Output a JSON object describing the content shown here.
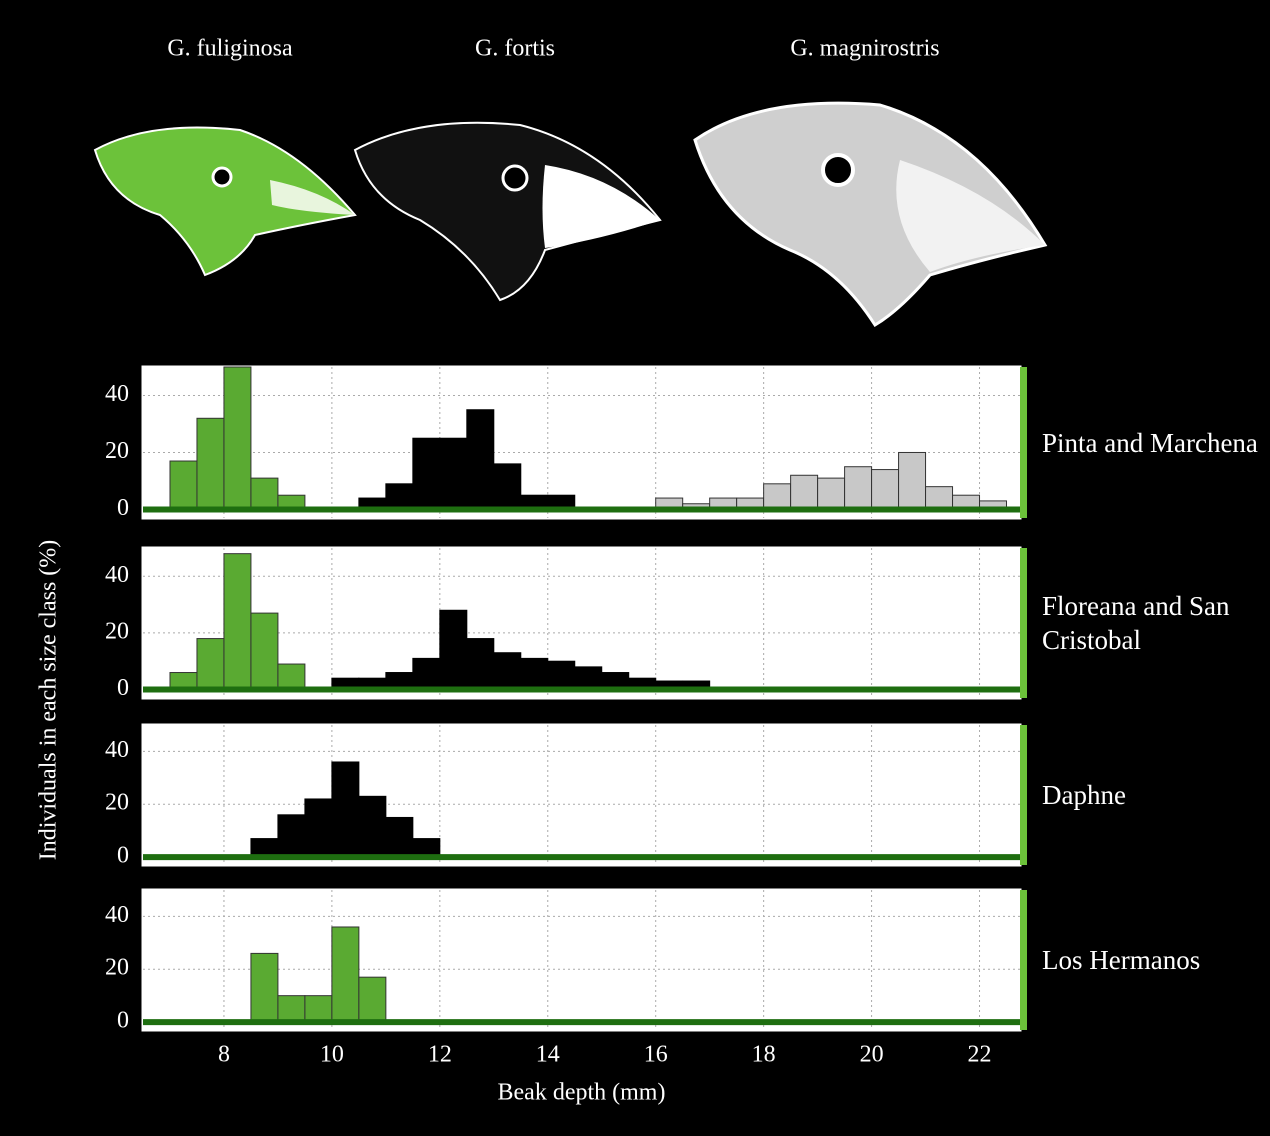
{
  "chart_data": [
    {
      "type": "histogram",
      "title": "Pinta and Marchena",
      "ylabel": "Individuals in each size class (%)",
      "xlim": [
        6.5,
        22.75
      ],
      "xticks": [
        8,
        10,
        12,
        14,
        16,
        18,
        20,
        22
      ],
      "ylim": [
        -3,
        50
      ],
      "yticks": [
        0,
        20,
        40
      ],
      "grid": true,
      "series": [
        {
          "name": "G. fuliginosa",
          "color": "#5aaa32",
          "bins": [
            7.0,
            7.5,
            8.0,
            8.5,
            9.0,
            9.5
          ],
          "values": [
            17,
            32,
            50,
            11,
            5
          ]
        },
        {
          "name": "G. fortis",
          "color": "#000000",
          "bins": [
            10.5,
            11.0,
            11.5,
            12.0,
            12.5,
            13.0,
            13.5,
            14.0,
            14.5
          ],
          "values": [
            4,
            9,
            25,
            25,
            35,
            16,
            5,
            5
          ]
        },
        {
          "name": "G. magnirostris",
          "color": "#c8c8c8",
          "bins": [
            16.0,
            16.5,
            17.0,
            17.5,
            18.0,
            18.5,
            19.0,
            19.5,
            20.0,
            20.5,
            21.0,
            21.5,
            22.0,
            22.5
          ],
          "values": [
            4,
            2,
            4,
            4,
            9,
            12,
            11,
            15,
            14,
            20,
            8,
            5,
            3
          ]
        }
      ]
    },
    {
      "type": "histogram",
      "title": "Floreana and San Cristobal",
      "xlim": [
        6.5,
        22.75
      ],
      "xticks": [
        8,
        10,
        12,
        14,
        16,
        18,
        20,
        22
      ],
      "ylim": [
        -3,
        50
      ],
      "yticks": [
        0,
        20,
        40
      ],
      "grid": true,
      "series": [
        {
          "color": "#5aaa32",
          "bins": [
            7.0,
            7.5,
            8.0,
            8.5,
            9.0,
            9.5
          ],
          "values": [
            6,
            18,
            48,
            27,
            9
          ]
        },
        {
          "color": "#000000",
          "bins": [
            10.0,
            10.5,
            11.0,
            11.5,
            12.0,
            12.5,
            13.0,
            13.5,
            14.0,
            14.5,
            15.0,
            15.5,
            16.0,
            16.5,
            17.0
          ],
          "values": [
            4,
            4,
            6,
            11,
            28,
            18,
            13,
            11,
            10,
            8,
            6,
            4,
            3,
            3
          ]
        }
      ]
    },
    {
      "type": "histogram",
      "title": "Daphne",
      "xlim": [
        6.5,
        22.75
      ],
      "xticks": [
        8,
        10,
        12,
        14,
        16,
        18,
        20,
        22
      ],
      "ylim": [
        -3,
        50
      ],
      "yticks": [
        0,
        20,
        40
      ],
      "grid": true,
      "series": [
        {
          "color": "#000000",
          "bins": [
            8.5,
            9.0,
            9.5,
            10.0,
            10.5,
            11.0,
            11.5,
            12.0
          ],
          "values": [
            7,
            16,
            22,
            36,
            23,
            15,
            7
          ]
        }
      ]
    },
    {
      "type": "histogram",
      "title": "Los Hermanos",
      "xlabel": "Beak depth (mm)",
      "xlim": [
        6.5,
        22.75
      ],
      "xticks": [
        8,
        10,
        12,
        14,
        16,
        18,
        20,
        22
      ],
      "ylim": [
        -3,
        50
      ],
      "yticks": [
        0,
        20,
        40
      ],
      "grid": true,
      "series": [
        {
          "color": "#5aaa32",
          "bins": [
            8.5,
            9.0,
            9.5,
            10.0,
            10.5,
            11.0
          ],
          "values": [
            26,
            10,
            10,
            36,
            17
          ]
        }
      ]
    }
  ]
}
